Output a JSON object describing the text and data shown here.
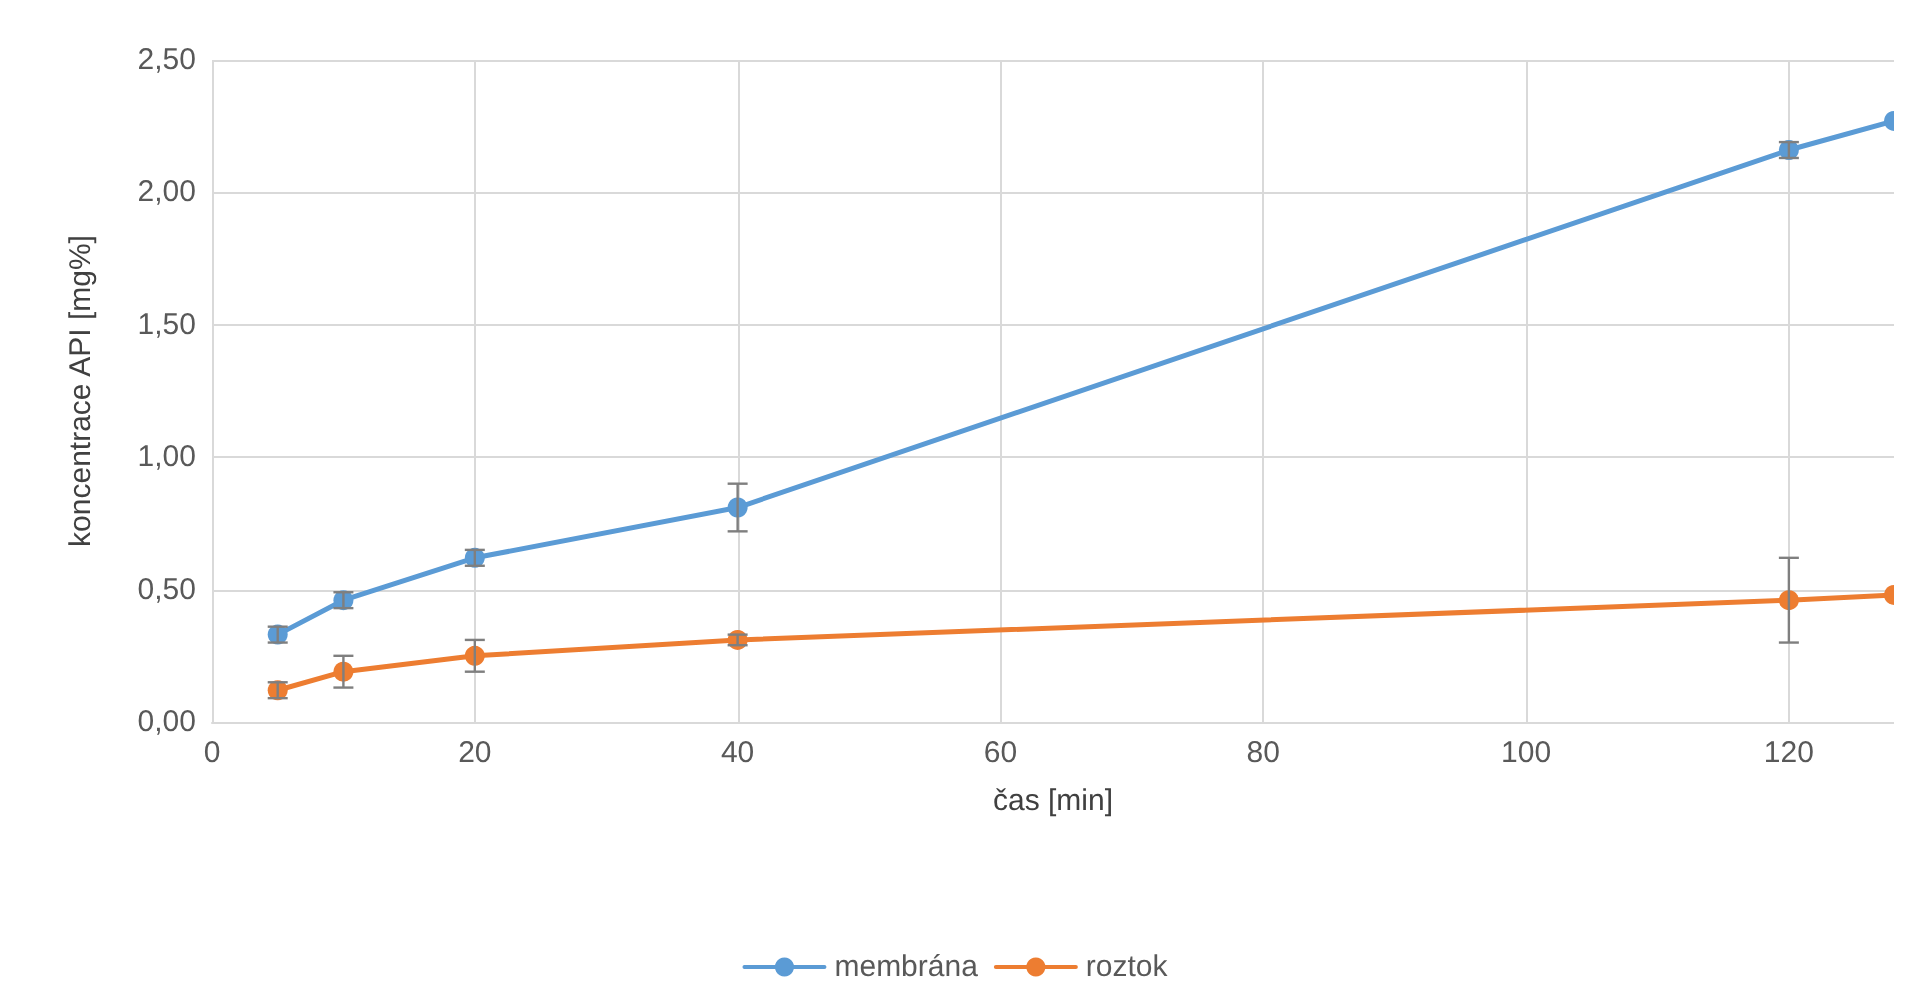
{
  "chart_data": {
    "type": "line",
    "xlabel": "čas [min]",
    "ylabel": "koncentrace API [mg%]",
    "xlim": [
      0,
      128
    ],
    "ylim": [
      0,
      2.5
    ],
    "xticks": [
      0,
      20,
      40,
      60,
      80,
      100,
      120
    ],
    "yticks": [
      {
        "value": 0,
        "label": "0,00"
      },
      {
        "value": 0.5,
        "label": "0,50"
      },
      {
        "value": 1,
        "label": "1,00"
      },
      {
        "value": 1.5,
        "label": "1,50"
      },
      {
        "value": 2,
        "label": "2,00"
      },
      {
        "value": 2.5,
        "label": "2,50"
      }
    ],
    "grid": true,
    "legend": "bottom",
    "marker": "circle",
    "line_style": "solid",
    "series": [
      {
        "name": "membrána",
        "color": "#5b9bd5",
        "x": [
          5,
          10,
          20,
          40,
          120,
          128
        ],
        "values": [
          0.33,
          0.46,
          0.62,
          0.81,
          2.16,
          2.27
        ],
        "errors": [
          0.03,
          0.03,
          0.03,
          0.09,
          0.03,
          null
        ]
      },
      {
        "name": "roztok",
        "color": "#ed7d31",
        "x": [
          5,
          10,
          20,
          40,
          120,
          128
        ],
        "values": [
          0.12,
          0.19,
          0.25,
          0.31,
          0.46,
          0.48
        ],
        "errors": [
          0.03,
          0.06,
          0.06,
          0.02,
          0.16,
          null
        ]
      }
    ]
  }
}
